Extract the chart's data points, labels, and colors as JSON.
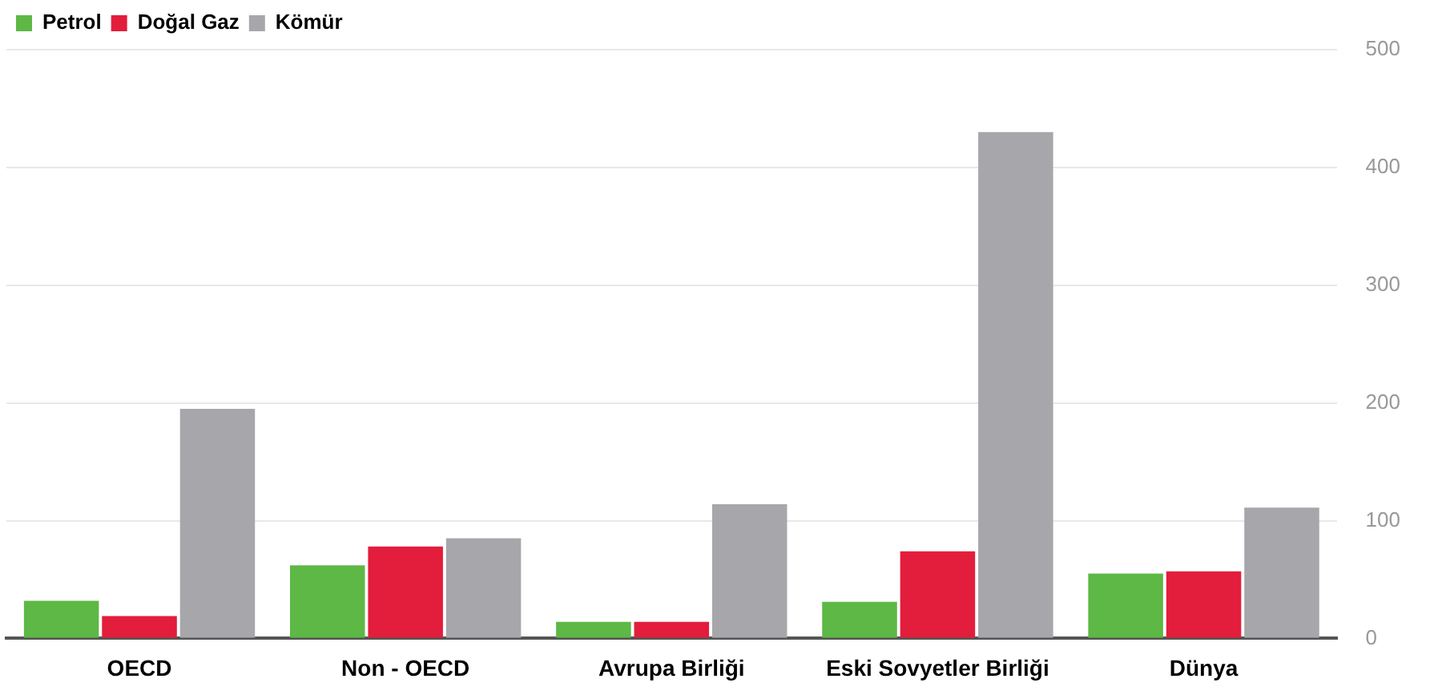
{
  "chart_data": {
    "type": "bar",
    "categories": [
      "OECD",
      "Non - OECD",
      "Avrupa Birliği",
      "Eski Sovyetler Birliği",
      "Dünya"
    ],
    "series": [
      {
        "name": "Petrol",
        "color": "#5db845",
        "values": [
          32,
          62,
          14,
          31,
          55
        ]
      },
      {
        "name": "Doğal Gaz",
        "color": "#e31d3c",
        "values": [
          19,
          78,
          14,
          74,
          57
        ]
      },
      {
        "name": "Kömür",
        "color": "#a7a6ab",
        "values": [
          195,
          85,
          114,
          430,
          111
        ]
      }
    ],
    "ylim": [
      0,
      500
    ],
    "yticks": [
      0,
      100,
      200,
      300,
      400,
      500
    ],
    "grid": "y",
    "legend": "top left"
  }
}
